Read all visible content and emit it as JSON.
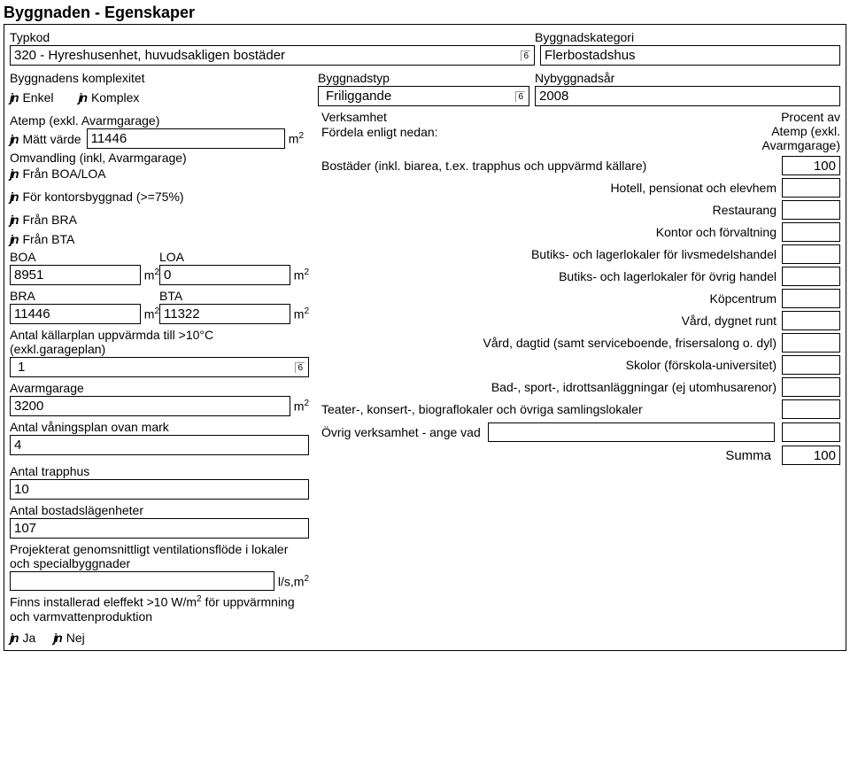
{
  "header": {
    "title": "Byggnaden - Egenskaper"
  },
  "top": {
    "typkod_label": "Typkod",
    "typkod_value": "320 - Hyreshusenhet, huvudsakligen bostäder",
    "kategori_label": "Byggnadskategori",
    "kategori_value": "Flerbostadshus",
    "komplex_label": "Byggnadens komplexitet",
    "komplex_opt1": "Enkel",
    "komplex_opt2": "Komplex",
    "byggtyp_label": "Byggnadstyp",
    "byggtyp_value": "Friliggande",
    "nybygg_label": "Nybyggnadsår",
    "nybygg_value": "2008",
    "caret": "6"
  },
  "left": {
    "atemp_label": "Atemp (exkl. Avarmgarage)",
    "matt": "Mätt värde",
    "matt_val": "11446",
    "omv_label": "Omvandling (inkl, Avarmgarage)",
    "fran_boa": "Från BOA/LOA",
    "kontors": "För kontorsbyggnad (>=75%)",
    "fran_bra": "Från BRA",
    "fran_bta": "Från BTA",
    "boa_label": "BOA",
    "boa_val": "8951",
    "loa_label": "LOA",
    "loa_val": "0",
    "bra_label": "BRA",
    "bra_val": "11446",
    "bta_label": "BTA",
    "bta_val": "11322",
    "kallarplan_label": "Antal källarplan uppvärmda till >10°C (exkl.garageplan)",
    "kallarplan_val": "1",
    "avarm_label": "Avarmgarage",
    "avarm_val": "3200",
    "vaning_label": "Antal våningsplan ovan mark",
    "vaning_val": "4",
    "trapphus_label": "Antal trapphus",
    "trapphus_val": "10",
    "lagen_label": "Antal bostadslägenheter",
    "lagen_val": "107",
    "vent_label": "Projekterat genomsnittligt ventilationsflöde i lokaler och specialbyggnader",
    "vent_unit": "l/s,m",
    "eleffekt_label": "Finns installerad eleffekt >10 W/m",
    "eleffekt_label_tail": " för uppvärmning och varmvattenproduktion",
    "ja": "Ja",
    "nej": "Nej",
    "m2": "m",
    "sup2": "2"
  },
  "right": {
    "verksamhet_label": "Verksamhet",
    "fordela": "Fördela enligt nedan:",
    "procent1": "Procent av",
    "procent2": "Atemp (exkl.",
    "procent3": "Avarmgarage)",
    "items": [
      {
        "label": "Bostäder (inkl. biarea, t.ex. trapphus och uppvärmd källare)",
        "value": "100"
      },
      {
        "label": "Hotell, pensionat och elevhem",
        "value": ""
      },
      {
        "label": "Restaurang",
        "value": ""
      },
      {
        "label": "Kontor och förvaltning",
        "value": ""
      },
      {
        "label": "Butiks- och lagerlokaler för livsmedelshandel",
        "value": ""
      },
      {
        "label": "Butiks- och lagerlokaler för övrig handel",
        "value": ""
      },
      {
        "label": "Köpcentrum",
        "value": ""
      },
      {
        "label": "Vård, dygnet runt",
        "value": ""
      },
      {
        "label": "Vård, dagtid (samt serviceboende, frisersalong o. dyl)",
        "value": ""
      },
      {
        "label": "Skolor (förskola-universitet)",
        "value": ""
      },
      {
        "label": "Bad-, sport-, idrottsanläggningar (ej utomhusarenor)",
        "value": ""
      },
      {
        "label": "Teater-, konsert-, biograflokaler och övriga samlingslokaler",
        "value": ""
      }
    ],
    "ovrig_label": "Övrig verksamhet - ange vad",
    "ovrig_text": "",
    "ovrig_val": "",
    "summa_label": "Summa",
    "summa_val": "100"
  }
}
